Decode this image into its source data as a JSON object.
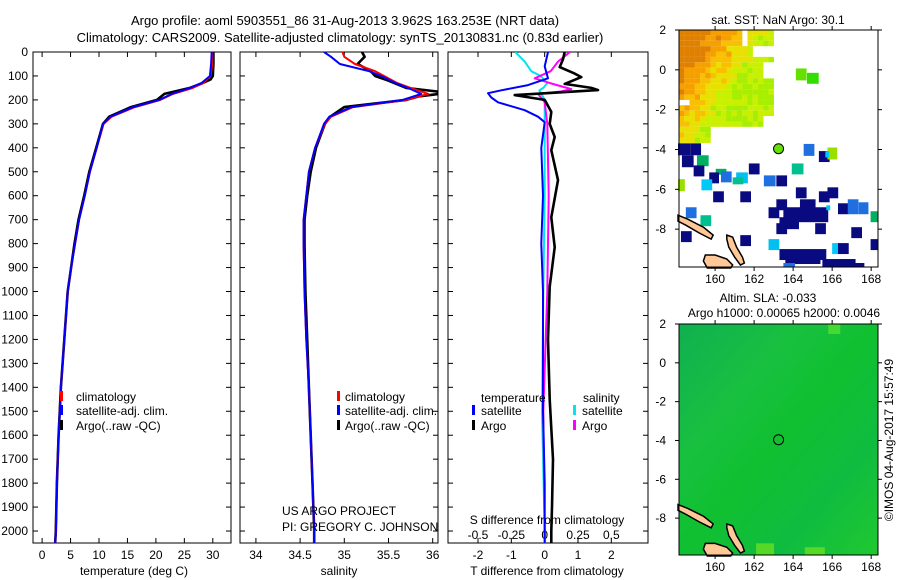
{
  "title": {
    "line1": "Argo profile: aoml 5903551_86 31-Aug-2013 3.962S 163.253E (NRT data)",
    "line2": "Climatology: CARS2009. Satellite-adjusted climatology: synTS_20130831.nc (0.83d earlier)"
  },
  "credit": {
    "project": "US ARGO PROJECT",
    "pi": "PI: GREGORY C. JOHNSON",
    "stamp": "©IMOS 04-Aug-2017 15:57:49"
  },
  "colors": {
    "climatology": "#ff0000",
    "satellite": "#0000ff",
    "argo": "#000000",
    "sal_satellite": "#00e5ee",
    "sal_argo": "#ff00ff"
  },
  "chart_data": [
    {
      "type": "line",
      "title": "",
      "xlabel": "temperature (deg C)",
      "ylabel": "",
      "xlim": [
        -1.6,
        33.2
      ],
      "ylim": [
        2050,
        0
      ],
      "xticks": [
        0,
        5,
        10,
        15,
        20,
        25,
        30
      ],
      "yticks": [
        0,
        100,
        200,
        300,
        400,
        500,
        600,
        700,
        800,
        900,
        1000,
        1100,
        1200,
        1300,
        1400,
        1500,
        1600,
        1700,
        1800,
        1900,
        2000
      ],
      "legend": {
        "position": "lower-center",
        "entries": [
          "climatology",
          "satellite-adj. clim.",
          "Argo(..raw -QC)"
        ]
      },
      "series": [
        {
          "name": "climatology",
          "color": "#ff0000",
          "depth": [
            0,
            50,
            100,
            130,
            150,
            175,
            200,
            230,
            270,
            300,
            400,
            500,
            600,
            700,
            800,
            900,
            1000,
            1200,
            1400,
            1600,
            1800,
            2000,
            2050
          ],
          "values": [
            29.9,
            29.9,
            29.6,
            28.3,
            26.5,
            23,
            20.8,
            16.3,
            12.2,
            10.8,
            9.6,
            8.4,
            7.5,
            6.5,
            5.8,
            5.1,
            4.5,
            3.9,
            3.3,
            2.9,
            2.6,
            2.4,
            2.3
          ]
        },
        {
          "name": "satellite-adj. clim.",
          "color": "#0000ff",
          "depth": [
            0,
            50,
            100,
            130,
            150,
            175,
            200,
            230,
            270,
            300,
            400,
            500,
            600,
            700,
            800,
            900,
            1000,
            1200,
            1400,
            1600,
            1800,
            2000,
            2050
          ],
          "values": [
            29.8,
            29.7,
            29.5,
            28.0,
            26.0,
            22.8,
            20.6,
            16.0,
            12.0,
            10.7,
            9.6,
            8.4,
            7.5,
            6.5,
            5.8,
            5.1,
            4.5,
            3.9,
            3.3,
            2.9,
            2.6,
            2.4,
            2.3
          ]
        },
        {
          "name": "Argo(..raw -QC)",
          "color": "#000000",
          "depth": [
            0,
            50,
            100,
            115,
            130,
            150,
            175,
            200,
            230,
            270,
            300,
            400,
            500,
            600,
            700,
            800,
            900,
            1000,
            1200,
            1400,
            1600,
            1800,
            2000,
            2050
          ],
          "values": [
            30.1,
            30.1,
            30.0,
            29.6,
            28.2,
            26.0,
            21.5,
            20.2,
            15.6,
            11.8,
            10.7,
            9.5,
            8.3,
            7.4,
            6.4,
            5.7,
            5.1,
            4.5,
            3.9,
            3.3,
            2.9,
            2.6,
            2.4,
            2.3
          ]
        }
      ]
    },
    {
      "type": "line",
      "xlabel": "salinity",
      "xlim": [
        33.82,
        36.06
      ],
      "ylim": [
        2050,
        0
      ],
      "xticks": [
        34,
        34.5,
        35,
        35.5,
        36
      ],
      "legend": {
        "position": "lower-center",
        "entries": [
          "climatology",
          "satellite-adj. clim.",
          "Argo(..raw -QC)"
        ]
      },
      "series": [
        {
          "name": "climatology",
          "color": "#ff0000",
          "depth": [
            0,
            20,
            50,
            80,
            100,
            130,
            150,
            175,
            200,
            230,
            270,
            300,
            400,
            500,
            600,
            700,
            800,
            1000,
            1200,
            1400,
            1600,
            1800,
            2000,
            2050
          ],
          "values": [
            34.98,
            35.0,
            35.12,
            35.35,
            35.45,
            35.6,
            35.75,
            35.95,
            35.7,
            35.1,
            34.85,
            34.78,
            34.67,
            34.6,
            34.57,
            34.54,
            34.54,
            34.55,
            34.57,
            34.6,
            34.62,
            34.64,
            34.66,
            34.66
          ]
        },
        {
          "name": "satellite-adj. clim.",
          "color": "#0000ff",
          "depth": [
            0,
            20,
            50,
            80,
            100,
            130,
            150,
            175,
            200,
            230,
            270,
            300,
            400,
            500,
            600,
            700,
            800,
            1000,
            1200,
            1400,
            1600,
            1800,
            2000,
            2050
          ],
          "values": [
            34.77,
            34.85,
            34.95,
            35.28,
            35.42,
            35.58,
            35.72,
            35.87,
            35.66,
            35.08,
            34.83,
            34.77,
            34.67,
            34.6,
            34.57,
            34.54,
            34.54,
            34.55,
            34.57,
            34.6,
            34.62,
            34.64,
            34.66,
            34.66
          ]
        },
        {
          "name": "Argo(..raw -QC)",
          "color": "#000000",
          "depth": [
            0,
            20,
            50,
            60,
            80,
            100,
            120,
            150,
            165,
            175,
            185,
            200,
            230,
            270,
            300,
            400,
            500,
            600,
            700,
            800,
            1000,
            1200,
            1400,
            1600,
            1800,
            2000,
            2050
          ],
          "values": [
            35.2,
            35.23,
            35.15,
            35.2,
            35.3,
            35.35,
            35.5,
            35.7,
            36.05,
            36.07,
            35.85,
            35.7,
            35.0,
            34.84,
            34.78,
            34.68,
            34.62,
            34.58,
            34.55,
            34.55,
            34.56,
            34.58,
            34.6,
            34.62,
            34.64,
            34.66,
            34.66
          ]
        }
      ]
    },
    {
      "type": "line",
      "xlabel": "T difference from climatology",
      "x2label": "S difference from climatology",
      "xlim": [
        -2.9,
        3.1
      ],
      "x2lim": [
        -0.725,
        0.775
      ],
      "ylim": [
        2050,
        0
      ],
      "xticks": [
        -2,
        -1,
        0,
        1,
        2
      ],
      "x2ticks": [
        -0.5,
        -0.25,
        0,
        0.25,
        0.5
      ],
      "legend": {
        "position": "lower-center",
        "headers": [
          "temperature",
          "salinity"
        ],
        "entries": [
          "satellite",
          "Argo",
          "satellite",
          "Argo"
        ]
      },
      "series": [
        {
          "name": "temperature satellite",
          "color": "#0000ff",
          "axis": "T",
          "depth": [
            0,
            60,
            110,
            138,
            160,
            172,
            190,
            210,
            243,
            270,
            293,
            400,
            600,
            800,
            1000,
            1200,
            1500,
            1800,
            2000,
            2050
          ],
          "values": [
            0.1,
            0,
            0.1,
            -0.5,
            -1.3,
            -1.7,
            -1.6,
            -1.4,
            -0.6,
            -0.2,
            0,
            -0.1,
            -0.05,
            -0.1,
            -0.05,
            -0.05,
            -0.05,
            0,
            0,
            0
          ]
        },
        {
          "name": "temperature Argo",
          "color": "#000000",
          "axis": "T",
          "depth": [
            0,
            30,
            63,
            90,
            105,
            133,
            150,
            159,
            170,
            180,
            200,
            250,
            300,
            355,
            410,
            535,
            690,
            815,
            980,
            1200,
            1450,
            1700,
            1900,
            2000,
            2050
          ],
          "values": [
            0.6,
            0.55,
            0.45,
            0.9,
            1.1,
            0.6,
            1.4,
            1.6,
            0.3,
            -0.9,
            0,
            0.2,
            0.15,
            0.3,
            0.2,
            0.4,
            0.2,
            0.3,
            0.15,
            0.1,
            0.15,
            0.25,
            0.22,
            0.2,
            0.2
          ]
        },
        {
          "name": "salinity satellite",
          "color": "#00e5ee",
          "axis": "S",
          "depth": [
            0,
            40,
            80,
            100,
            130,
            150,
            160,
            200,
            300,
            600,
            1000,
            1500,
            2000,
            2050
          ],
          "values": [
            -0.22,
            -0.15,
            -0.1,
            -0.03,
            0.02,
            -0.01,
            -0.04,
            0,
            0,
            0,
            -0.01,
            -0.02,
            0,
            0
          ]
        },
        {
          "name": "salinity Argo",
          "color": "#ff00ff",
          "axis": "S",
          "depth": [
            0,
            40,
            80,
            110,
            130,
            155,
            165,
            175,
            210,
            300,
            600,
            1000,
            1500,
            2000,
            2050
          ],
          "values": [
            0.19,
            0.1,
            0.045,
            -0.075,
            0.04,
            0.2,
            0.12,
            -0.05,
            0,
            0.02,
            0.03,
            0.02,
            -0.01,
            0,
            0
          ]
        }
      ]
    }
  ],
  "maps": {
    "sst": {
      "title": "sat. SST: NaN Argo: 30.1",
      "lon_range": [
        158.15,
        168.35
      ],
      "lat_range": [
        -9.9,
        2
      ],
      "lon_ticks": [
        160,
        162,
        164,
        166,
        168
      ],
      "lat_ticks": [
        2,
        0,
        -2,
        -4,
        -6,
        -8
      ],
      "float_position": [
        163.253,
        -3.962
      ],
      "float_color": "#66e000",
      "patches": [
        [
          164.14,
          0.07,
          0.55,
          0.6,
          "#66e000"
        ],
        [
          164.71,
          -0.15,
          0.6,
          0.55,
          "#33dd00"
        ],
        [
          158.1,
          -3.69,
          0.63,
          0.6,
          "#0a0a80"
        ],
        [
          158.73,
          -3.69,
          0.55,
          0.6,
          "#0a0a80"
        ],
        [
          158.3,
          -4.29,
          0.6,
          0.6,
          "#0a0a80"
        ],
        [
          159.07,
          -4.29,
          0.6,
          0.55,
          "#00b060"
        ],
        [
          158.9,
          -4.8,
          0.55,
          0.55,
          "#0a0a80"
        ],
        [
          158.1,
          -5.49,
          0.35,
          0.6,
          "#99e000"
        ],
        [
          160.03,
          -4.97,
          0.55,
          0.3,
          "#00b060"
        ],
        [
          159.7,
          -5.15,
          0.5,
          0.55,
          "#0a0a80"
        ],
        [
          160.3,
          -5.1,
          0.55,
          0.55,
          "#1f6fe0"
        ],
        [
          161.08,
          -5.15,
          0.6,
          0.55,
          "#00c0f0"
        ],
        [
          160.9,
          -5.4,
          0.55,
          0.35,
          "#00c090"
        ],
        [
          159.3,
          -5.5,
          0.55,
          0.55,
          "#00c8f8"
        ],
        [
          159.9,
          -6.1,
          0.55,
          0.55,
          "#0a0a80"
        ],
        [
          161.73,
          -4.7,
          0.55,
          0.55,
          "#0a0a80"
        ],
        [
          163.93,
          -4.7,
          0.6,
          0.55,
          "#00c090"
        ],
        [
          162.5,
          -5.3,
          0.6,
          0.55,
          "#1f6fe0"
        ],
        [
          163.14,
          -5.3,
          0.55,
          0.55,
          "#0a0a80"
        ],
        [
          164.54,
          -3.72,
          0.55,
          0.6,
          "#1f6fe0"
        ],
        [
          165.32,
          -4.08,
          0.55,
          0.55,
          "#0a0a80"
        ],
        [
          165.76,
          -3.9,
          0.5,
          0.6,
          "#99e000"
        ],
        [
          165.65,
          -4.1,
          0.2,
          0.3,
          "#00c8f8"
        ],
        [
          161.29,
          -6.1,
          0.55,
          0.55,
          "#0a0a80"
        ],
        [
          164.14,
          -5.9,
          0.55,
          0.55,
          "#0a0a80"
        ],
        [
          165.32,
          -6.1,
          0.55,
          0.55,
          "#0a0a80"
        ],
        [
          165.76,
          -5.9,
          0.55,
          0.55,
          "#0a0a80"
        ],
        [
          158.5,
          -6.9,
          0.55,
          0.55,
          "#1f6fe0"
        ],
        [
          159.25,
          -7.3,
          0.55,
          0.55,
          "#00c090"
        ],
        [
          163.14,
          -6.5,
          0.55,
          0.55,
          "#0a0a80"
        ],
        [
          162.74,
          -6.9,
          0.55,
          0.55,
          "#0a0a80"
        ],
        [
          163.5,
          -6.9,
          2.3,
          0.75,
          "#0a0a80"
        ],
        [
          163.3,
          -7.4,
          1.0,
          0.6,
          "#0a0a80"
        ],
        [
          164.35,
          -6.5,
          0.8,
          0.6,
          "#0a0a80"
        ],
        [
          165.7,
          -6.8,
          0.2,
          0.25,
          "#00c8f8"
        ],
        [
          166.3,
          -6.7,
          0.55,
          0.55,
          "#0a0a80"
        ],
        [
          166.8,
          -6.5,
          0.55,
          0.75,
          "#1f6fe0"
        ],
        [
          167.36,
          -6.65,
          0.5,
          0.6,
          "#1f6fe0"
        ],
        [
          167.97,
          -7.1,
          0.4,
          0.55,
          "#00b060"
        ],
        [
          163.14,
          -7.7,
          0.55,
          0.55,
          "#0a0a80"
        ],
        [
          165.13,
          -7.7,
          0.55,
          0.55,
          "#0a0a80"
        ],
        [
          166.98,
          -7.9,
          0.55,
          0.55,
          "#0a0a80"
        ],
        [
          158.25,
          -8.1,
          0.55,
          0.55,
          "#0a0a80"
        ],
        [
          161.29,
          -8.3,
          0.55,
          0.55,
          "#0a0a80"
        ],
        [
          162.74,
          -8.5,
          0.55,
          0.55,
          "#00c0f0"
        ],
        [
          163.3,
          -9.0,
          2.4,
          0.55,
          "#0a0a80"
        ],
        [
          163.6,
          -9.5,
          1.8,
          0.25,
          "#0a0a80"
        ],
        [
          165.5,
          -9.5,
          1.7,
          0.4,
          "#0a0a80"
        ],
        [
          167.1,
          -9.7,
          0.55,
          0.2,
          "#0a0a80"
        ],
        [
          167.97,
          -8.5,
          0.4,
          0.55,
          "#0a0a80"
        ],
        [
          166.0,
          -8.7,
          0.35,
          0.55,
          "#00c8f8"
        ],
        [
          166.3,
          -8.7,
          0.55,
          0.55,
          "#0a0a80"
        ],
        [
          163.5,
          -9.7,
          0.6,
          0.2,
          "#1f6fe0"
        ]
      ]
    },
    "sla": {
      "title1": "Altim. SLA: -0.033",
      "title2": "Argo h1000: 0.00065 h2000: 0.0046",
      "lon_range": [
        158.15,
        168.35
      ],
      "lat_range": [
        -9.9,
        2
      ],
      "lon_ticks": [
        160,
        162,
        164,
        166,
        168
      ],
      "lat_ticks": [
        2,
        0,
        -2,
        -4,
        -6,
        -8
      ],
      "float_position": [
        163.253,
        -3.962
      ]
    }
  }
}
